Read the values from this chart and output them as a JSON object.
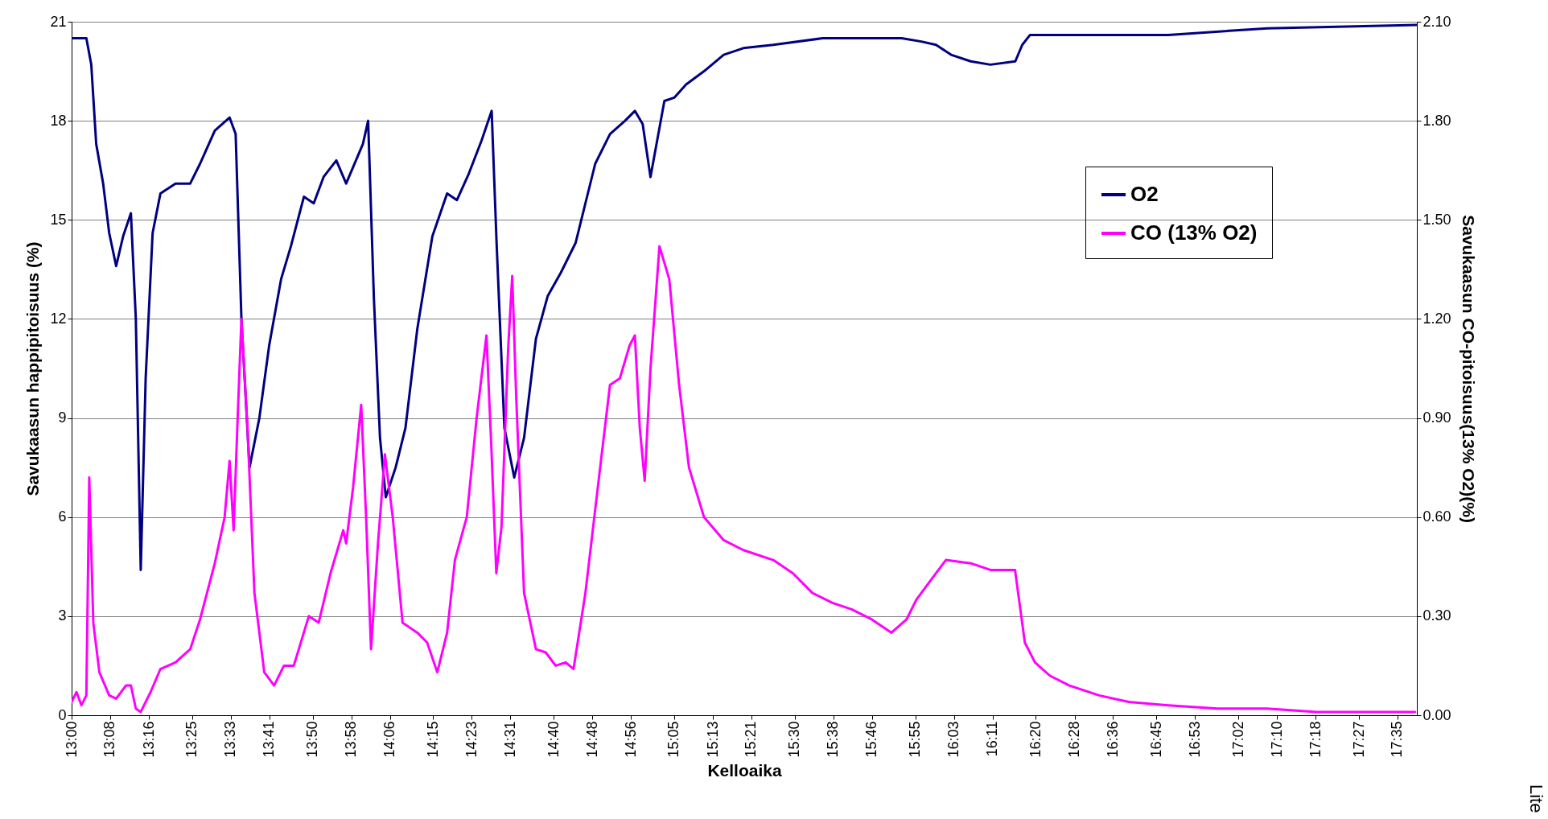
{
  "chart_data": {
    "type": "line",
    "xlabel": "Kelloaika",
    "ylabel": "Savukaasun happipitoisuus (%)",
    "y2label": "Savukaasun CO-pitoisuus(13% O2)(%)",
    "annotations": [
      "Lite"
    ],
    "xlim": [
      13,
      17.65
    ],
    "xticks": [
      {
        "value": 13,
        "label": "13:00"
      },
      {
        "value": 13.133,
        "label": "13:08"
      },
      {
        "value": 13.267,
        "label": "13:16"
      },
      {
        "value": 13.417,
        "label": "13:25"
      },
      {
        "value": 13.55,
        "label": "13:33"
      },
      {
        "value": 13.683,
        "label": "13:41"
      },
      {
        "value": 13.833,
        "label": "13:50"
      },
      {
        "value": 13.967,
        "label": "13:58"
      },
      {
        "value": 14.1,
        "label": "14:06"
      },
      {
        "value": 14.25,
        "label": "14:15"
      },
      {
        "value": 14.383,
        "label": "14:23"
      },
      {
        "value": 14.517,
        "label": "14:31"
      },
      {
        "value": 14.667,
        "label": "14:40"
      },
      {
        "value": 14.8,
        "label": "14:48"
      },
      {
        "value": 14.933,
        "label": "14:56"
      },
      {
        "value": 15.083,
        "label": "15:05"
      },
      {
        "value": 15.217,
        "label": "15:13"
      },
      {
        "value": 15.35,
        "label": "15:21"
      },
      {
        "value": 15.5,
        "label": "15:30"
      },
      {
        "value": 15.633,
        "label": "15:38"
      },
      {
        "value": 15.767,
        "label": "15:46"
      },
      {
        "value": 15.917,
        "label": "15:55"
      },
      {
        "value": 16.05,
        "label": "16:03"
      },
      {
        "value": 16.183,
        "label": "16:11"
      },
      {
        "value": 16.333,
        "label": "16:20"
      },
      {
        "value": 16.467,
        "label": "16:28"
      },
      {
        "value": 16.6,
        "label": "16:36"
      },
      {
        "value": 16.75,
        "label": "16:45"
      },
      {
        "value": 16.883,
        "label": "16:53"
      },
      {
        "value": 17.033,
        "label": "17:02"
      },
      {
        "value": 17.167,
        "label": "17:10"
      },
      {
        "value": 17.3,
        "label": "17:18"
      },
      {
        "value": 17.45,
        "label": "17:27"
      },
      {
        "value": 17.583,
        "label": "17:35"
      }
    ],
    "ylim": [
      0,
      21
    ],
    "yticks": [
      0,
      3,
      6,
      9,
      12,
      15,
      18,
      21
    ],
    "y2lim": [
      0,
      2.1
    ],
    "y2ticks": [
      {
        "value": 0,
        "label": "0.00"
      },
      {
        "value": 0.3,
        "label": "0.30"
      },
      {
        "value": 0.6,
        "label": "0.60"
      },
      {
        "value": 0.9,
        "label": "0.90"
      },
      {
        "value": 1.2,
        "label": "1.20"
      },
      {
        "value": 1.5,
        "label": "1.50"
      },
      {
        "value": 1.8,
        "label": "1.80"
      },
      {
        "value": 2.1,
        "label": "2.10"
      }
    ],
    "grid": "y",
    "legend": "top right",
    "marker": "none",
    "line_style": "solid",
    "series": [
      {
        "name": "O2",
        "color": "#000080",
        "x": [
          13.0,
          13.051,
          13.068,
          13.085,
          13.109,
          13.13,
          13.154,
          13.178,
          13.205,
          13.222,
          13.239,
          13.256,
          13.28,
          13.307,
          13.359,
          13.41,
          13.444,
          13.495,
          13.546,
          13.567,
          13.587,
          13.615,
          13.649,
          13.683,
          13.724,
          13.758,
          13.803,
          13.837,
          13.871,
          13.915,
          13.949,
          14.007,
          14.025,
          14.045,
          14.066,
          14.086,
          14.12,
          14.154,
          14.195,
          14.247,
          14.298,
          14.332,
          14.373,
          14.417,
          14.452,
          14.469,
          14.496,
          14.53,
          14.564,
          14.605,
          14.646,
          14.691,
          14.742,
          14.776,
          14.81,
          14.861,
          14.913,
          14.947,
          14.974,
          15.001,
          15.049,
          15.083,
          15.124,
          15.186,
          15.254,
          15.322,
          15.425,
          15.596,
          15.766,
          15.869,
          15.937,
          15.988,
          16.04,
          16.108,
          16.176,
          16.262,
          16.286,
          16.313,
          16.45,
          16.791,
          17.133,
          17.65
        ],
        "values": [
          20.5,
          20.5,
          19.7,
          17.3,
          16.1,
          14.6,
          13.6,
          14.5,
          15.2,
          12.0,
          4.4,
          10.2,
          14.6,
          15.8,
          16.1,
          16.1,
          16.7,
          17.7,
          18.1,
          17.6,
          12.0,
          7.5,
          9.0,
          11.2,
          13.2,
          14.2,
          15.7,
          15.5,
          16.3,
          16.8,
          16.1,
          17.3,
          18.0,
          12.6,
          8.4,
          6.6,
          7.5,
          8.7,
          11.7,
          14.5,
          15.8,
          15.6,
          16.4,
          17.4,
          18.3,
          14.3,
          8.7,
          7.2,
          8.4,
          11.4,
          12.7,
          13.4,
          14.3,
          15.5,
          16.7,
          17.6,
          18.0,
          18.3,
          17.9,
          16.3,
          18.6,
          18.7,
          19.1,
          19.5,
          20.0,
          20.2,
          20.3,
          20.5,
          20.5,
          20.5,
          20.4,
          20.3,
          20.0,
          19.8,
          19.7,
          19.8,
          20.3,
          20.6,
          20.6,
          20.6,
          20.8,
          20.9
        ]
      },
      {
        "name": "CO (13% O2)",
        "color": "#ff00ff",
        "axis": "y2",
        "x": [
          13.0,
          13.017,
          13.034,
          13.051,
          13.061,
          13.075,
          13.096,
          13.13,
          13.154,
          13.188,
          13.205,
          13.222,
          13.239,
          13.273,
          13.307,
          13.359,
          13.41,
          13.444,
          13.495,
          13.529,
          13.546,
          13.56,
          13.574,
          13.587,
          13.608,
          13.632,
          13.666,
          13.7,
          13.734,
          13.768,
          13.82,
          13.854,
          13.895,
          13.939,
          13.949,
          13.973,
          14.001,
          14.018,
          14.035,
          14.059,
          14.083,
          14.11,
          14.144,
          14.195,
          14.229,
          14.264,
          14.298,
          14.325,
          14.366,
          14.4,
          14.434,
          14.451,
          14.468,
          14.486,
          14.509,
          14.523,
          14.537,
          14.564,
          14.605,
          14.639,
          14.673,
          14.708,
          14.735,
          14.776,
          14.827,
          14.861,
          14.895,
          14.929,
          14.947,
          14.964,
          14.981,
          15.001,
          15.032,
          15.066,
          15.1,
          15.134,
          15.186,
          15.254,
          15.322,
          15.425,
          15.493,
          15.561,
          15.63,
          15.698,
          15.766,
          15.834,
          15.886,
          15.92,
          15.971,
          16.022,
          16.108,
          16.176,
          16.261,
          16.295,
          16.33,
          16.381,
          16.449,
          16.552,
          16.654,
          16.791,
          16.961,
          17.132,
          17.303,
          17.474,
          17.644
        ],
        "values": [
          0.04,
          0.07,
          0.03,
          0.06,
          0.72,
          0.28,
          0.13,
          0.06,
          0.05,
          0.09,
          0.09,
          0.02,
          0.01,
          0.07,
          0.14,
          0.16,
          0.2,
          0.29,
          0.46,
          0.6,
          0.77,
          0.56,
          0.9,
          1.2,
          0.87,
          0.37,
          0.13,
          0.09,
          0.15,
          0.15,
          0.3,
          0.28,
          0.43,
          0.56,
          0.52,
          0.69,
          0.94,
          0.6,
          0.2,
          0.52,
          0.79,
          0.6,
          0.28,
          0.25,
          0.22,
          0.13,
          0.25,
          0.47,
          0.6,
          0.9,
          1.15,
          0.81,
          0.43,
          0.57,
          1.11,
          1.33,
          0.96,
          0.37,
          0.2,
          0.19,
          0.15,
          0.16,
          0.14,
          0.37,
          0.75,
          1.0,
          1.02,
          1.12,
          1.15,
          0.87,
          0.71,
          1.05,
          1.42,
          1.32,
          1.0,
          0.75,
          0.6,
          0.53,
          0.5,
          0.47,
          0.43,
          0.37,
          0.34,
          0.32,
          0.29,
          0.25,
          0.29,
          0.35,
          0.41,
          0.47,
          0.46,
          0.44,
          0.44,
          0.22,
          0.16,
          0.12,
          0.09,
          0.06,
          0.04,
          0.03,
          0.02,
          0.02,
          0.01,
          0.01,
          0.01
        ]
      }
    ]
  }
}
